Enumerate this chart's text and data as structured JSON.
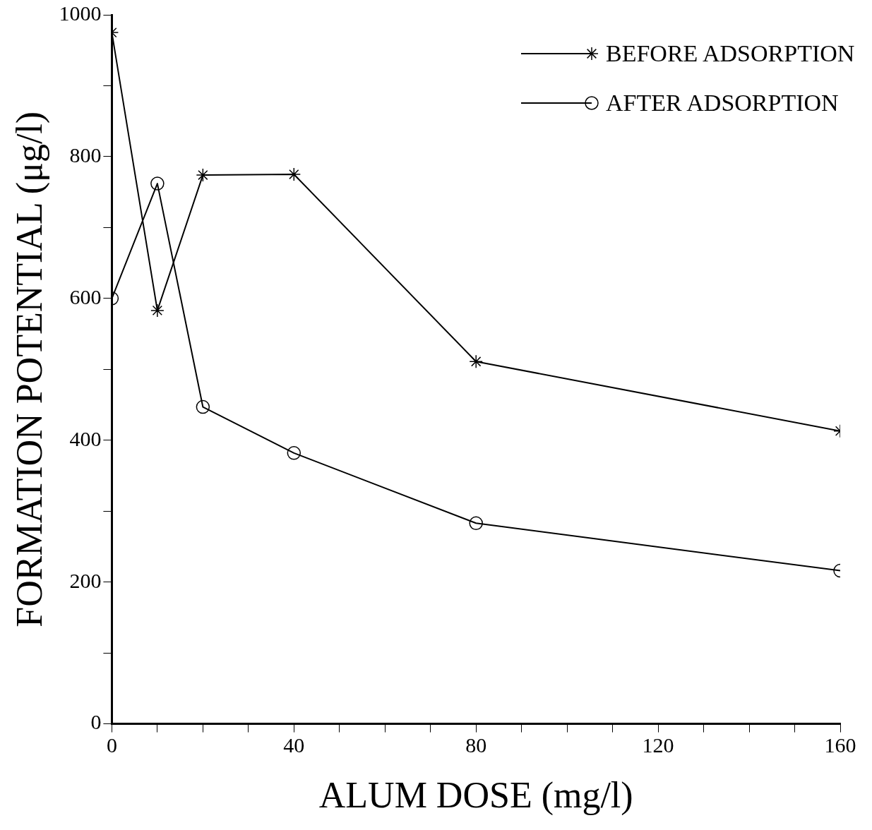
{
  "chart_data": {
    "type": "line",
    "xlabel": "ALUM DOSE (mg/l)",
    "ylabel": "FORMATION POTENTIAL (μg/l)",
    "x": [
      0,
      10,
      20,
      40,
      80,
      160
    ],
    "series": [
      {
        "name": "BEFORE ADSORPTION",
        "color": "#000000",
        "marker": "cross",
        "values": [
          975,
          583,
          774,
          775,
          511,
          413
        ]
      },
      {
        "name": "AFTER ADSORPTION",
        "color": "#000000",
        "marker": "circle",
        "values": [
          600,
          762,
          447,
          382,
          283,
          216
        ]
      }
    ],
    "xlim": [
      0,
      160
    ],
    "xticks": [
      0,
      {
        "value": 10,
        "label": null
      },
      {
        "value": 20,
        "label": null
      },
      {
        "value": 30,
        "label": null
      },
      40,
      {
        "value": 50,
        "label": null
      },
      {
        "value": 60,
        "label": null
      },
      {
        "value": 70,
        "label": null
      },
      80,
      {
        "value": 90,
        "label": null
      },
      {
        "value": 100,
        "label": null
      },
      {
        "value": 110,
        "label": null
      },
      120,
      {
        "value": 130,
        "label": null
      },
      {
        "value": 140,
        "label": null
      },
      {
        "value": 150,
        "label": null
      },
      160
    ],
    "ylim": [
      0,
      1000
    ],
    "yticks": [
      0,
      {
        "value": 100,
        "label": null
      },
      200,
      {
        "value": 300,
        "label": null
      },
      400,
      {
        "value": 500,
        "label": null
      },
      600,
      {
        "value": 700,
        "label": null
      },
      800,
      {
        "value": 900,
        "label": null
      },
      1000
    ],
    "grid": false,
    "legend": "top right",
    "line_style": "solid"
  }
}
